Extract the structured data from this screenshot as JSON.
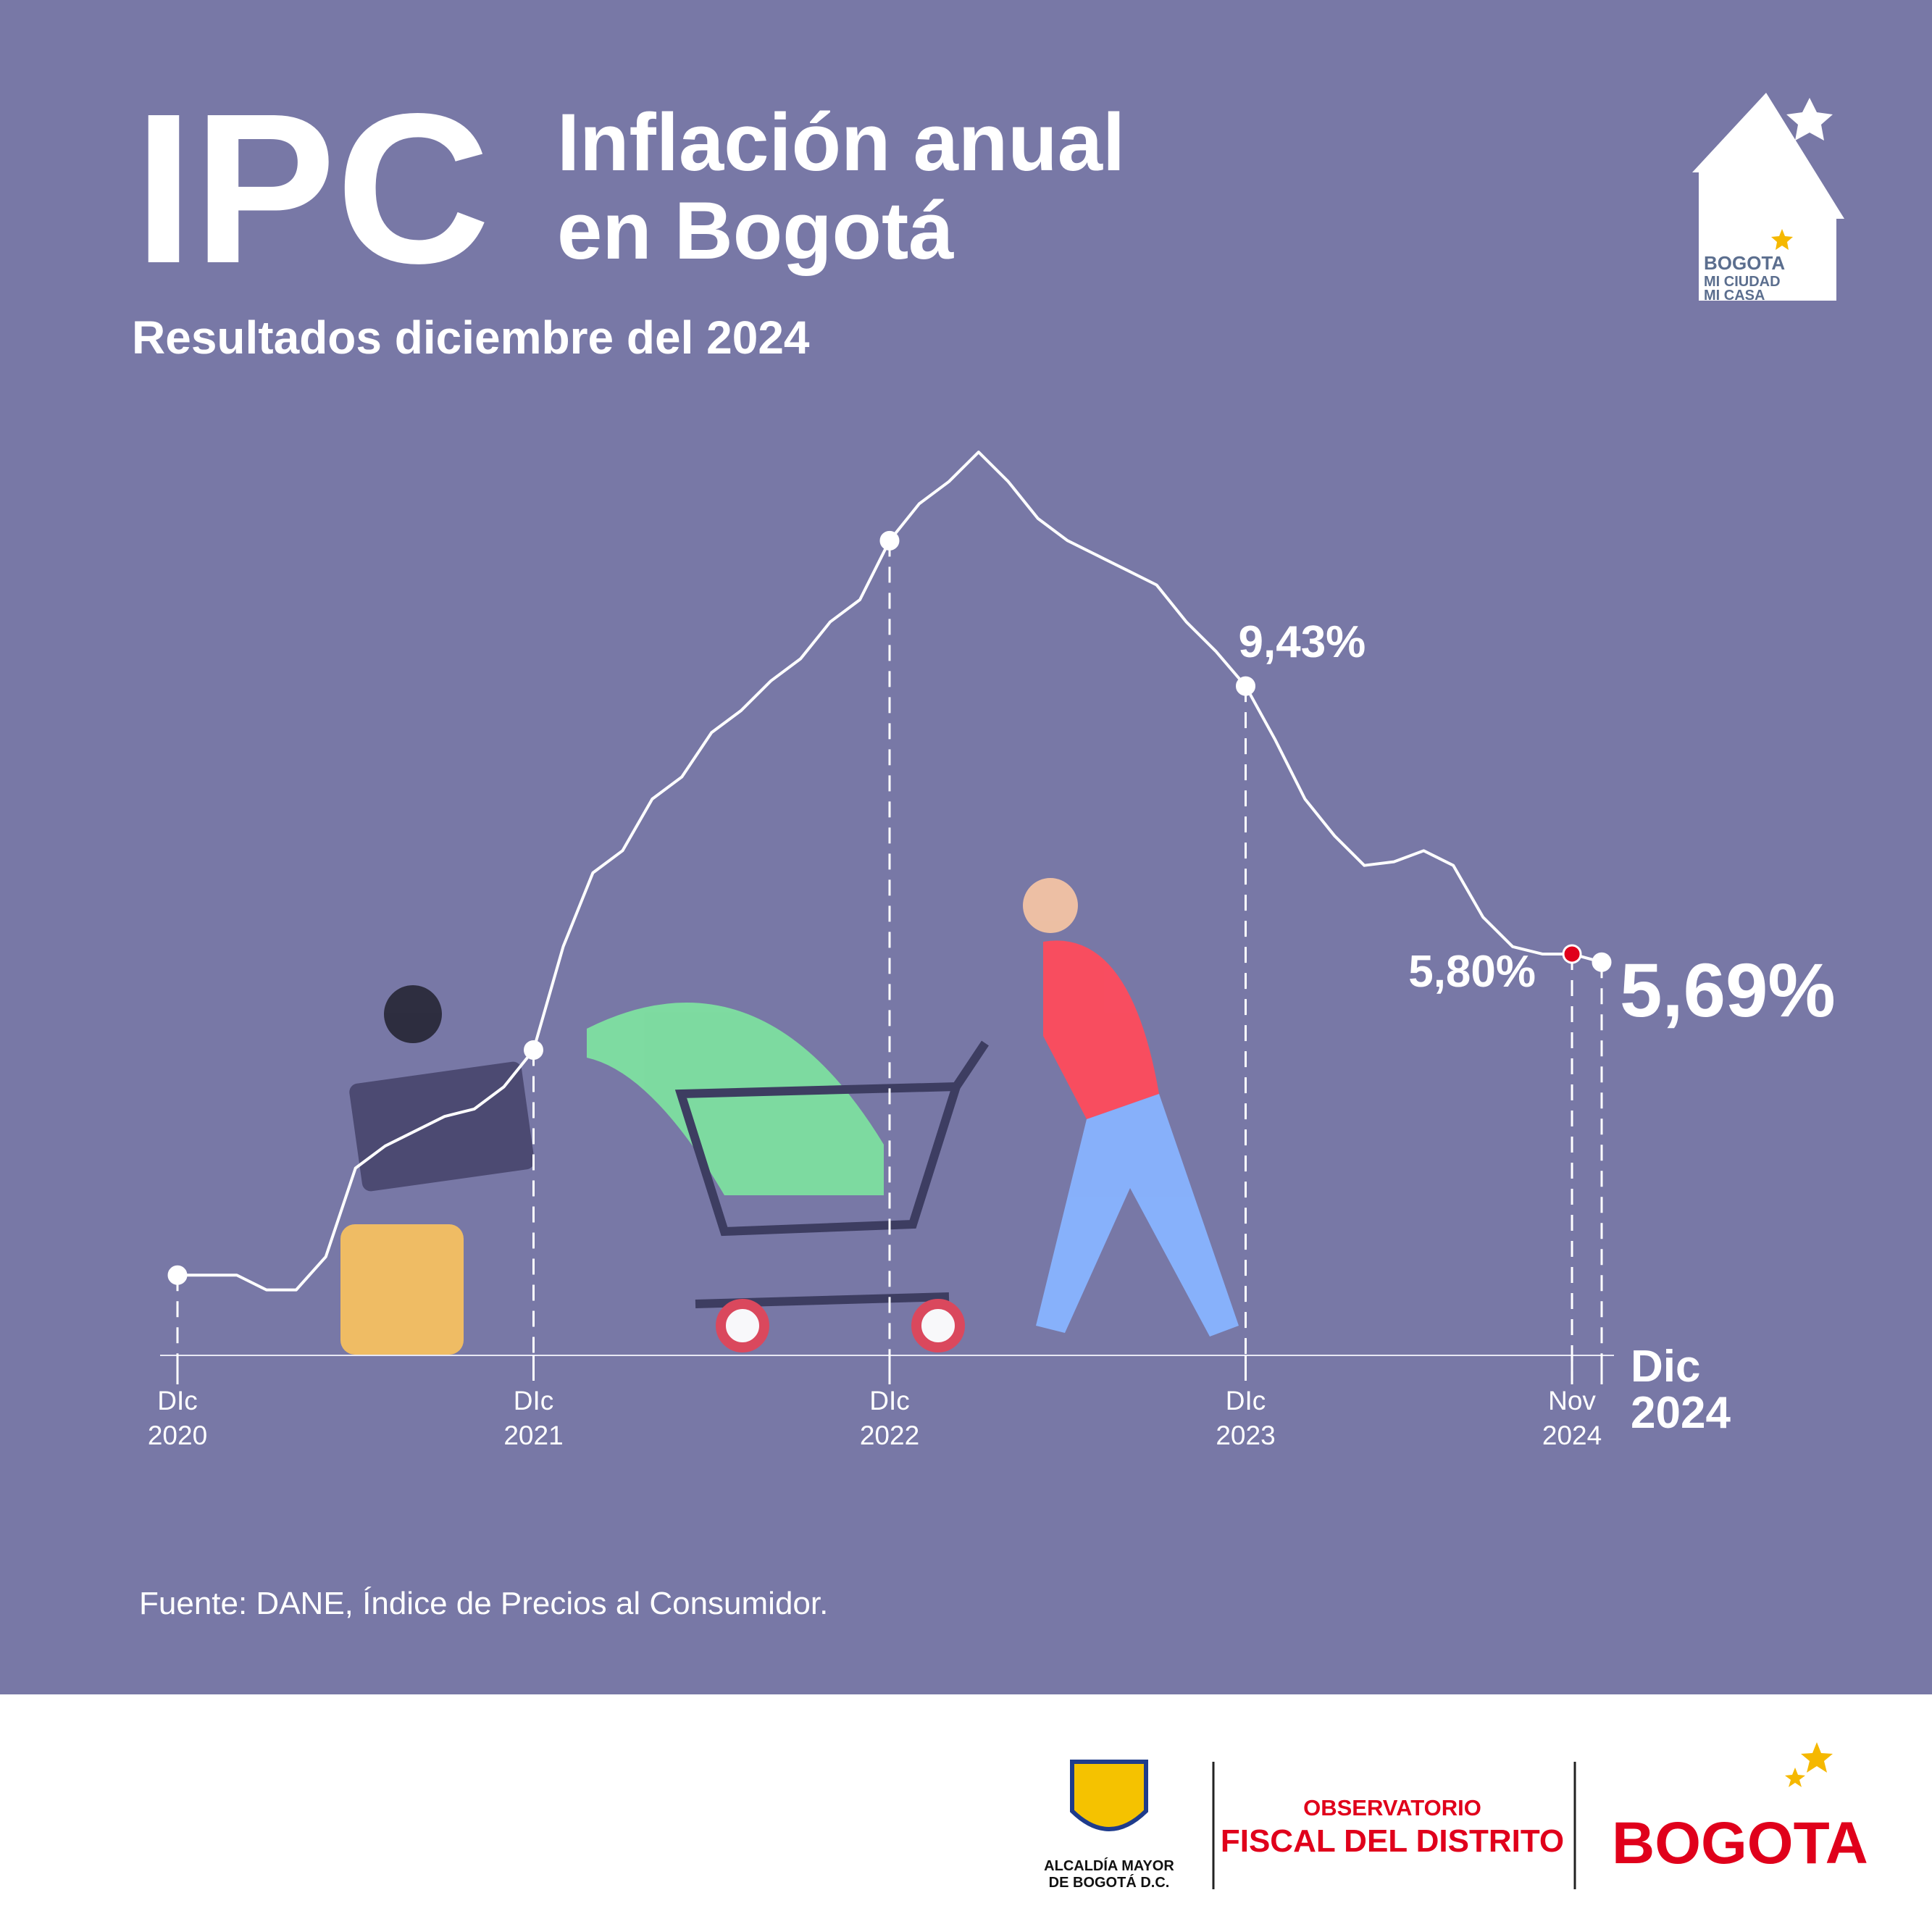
{
  "header": {
    "title": "IPC",
    "title_line1": "Inflación anual",
    "title_line2": "en Bogotá",
    "subtitle": "Resultados diciembre del 2024"
  },
  "logo_top": {
    "line1": "BOGOTA",
    "line2": "MI CIUDAD",
    "line3": "MI CASA"
  },
  "chart_data": {
    "type": "line",
    "categories": [
      "DIc 2020",
      null,
      null,
      null,
      null,
      null,
      null,
      null,
      null,
      null,
      null,
      null,
      "DIc 2021",
      null,
      null,
      null,
      null,
      null,
      null,
      null,
      null,
      null,
      null,
      null,
      "DIc 2022",
      null,
      null,
      null,
      null,
      null,
      null,
      null,
      null,
      null,
      null,
      null,
      "DIc 2023",
      null,
      null,
      null,
      null,
      null,
      null,
      null,
      null,
      null,
      null,
      "Nov 2024",
      "Dic 2024"
    ],
    "series": [
      {
        "color": "#ffffff",
        "values": [
          1.45,
          1.45,
          1.45,
          1.25,
          1.25,
          1.7,
          2.9,
          3.2,
          3.4,
          3.6,
          3.7,
          4.0,
          4.5,
          5.9,
          6.9,
          7.2,
          7.9,
          8.2,
          8.8,
          9.1,
          9.5,
          9.8,
          10.3,
          10.6,
          11.4,
          11.9,
          12.2,
          12.6,
          12.2,
          11.7,
          11.4,
          11.2,
          11.0,
          10.8,
          10.3,
          9.9,
          9.43,
          8.7,
          7.9,
          7.4,
          7.0,
          7.05,
          7.2,
          7.0,
          6.3,
          5.9,
          5.8,
          5.8,
          5.69
        ],
        "value_labels": [
          null,
          null,
          null,
          null,
          null,
          null,
          null,
          null,
          null,
          null,
          null,
          null,
          null,
          null,
          null,
          null,
          null,
          null,
          null,
          null,
          null,
          null,
          null,
          null,
          null,
          null,
          null,
          null,
          null,
          null,
          null,
          null,
          null,
          null,
          null,
          null,
          "9,43%",
          null,
          null,
          null,
          null,
          null,
          null,
          null,
          null,
          null,
          null,
          "5,80%",
          "5,69%"
        ]
      }
    ],
    "highlight_color": "#e0001b"
  },
  "source": "Fuente:  DANE, Índice de Precios al Consumidor.",
  "footer": {
    "alcaldia_line1": "ALCALDÍA MAYOR",
    "alcaldia_line2": "DE BOGOTÁ D.C.",
    "observatorio_line1": "OBSERVATORIO",
    "observatorio_line2": "FISCAL DEL DISTRITO",
    "bogota": "BOGOTA"
  }
}
